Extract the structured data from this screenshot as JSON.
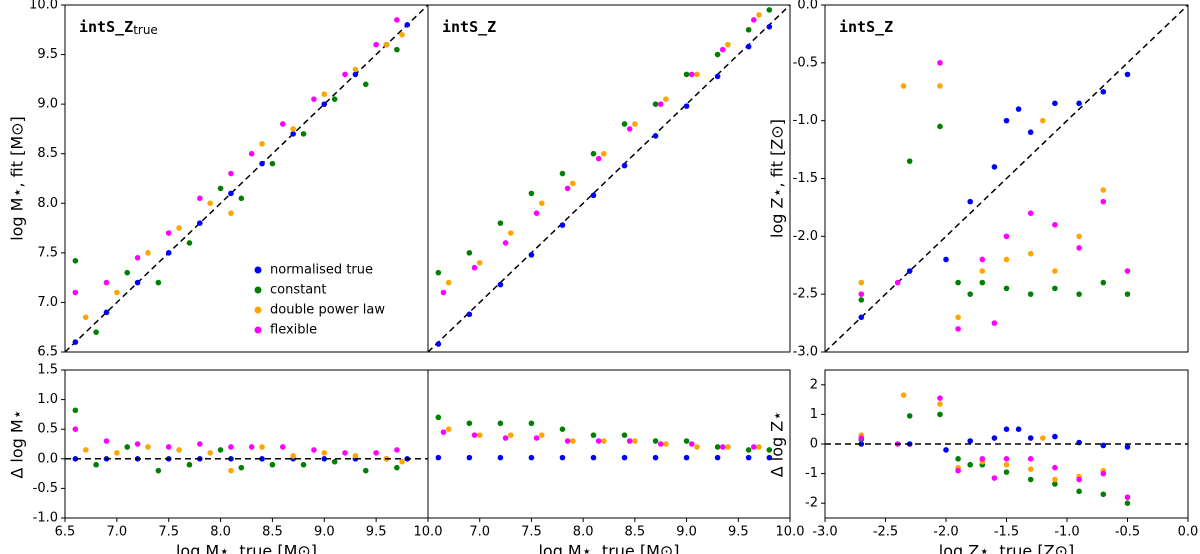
{
  "chart_data": [
    {
      "type": "scatter",
      "title": "intS_Z",
      "title_sub": "true",
      "ylabel": "log M⋆, fit [M⊙]",
      "xlim": [
        6.5,
        10
      ],
      "ylim": [
        6.5,
        10
      ],
      "yticks": [
        6.5,
        {
          "value": 7,
          "label": "7.0"
        },
        7.5,
        {
          "value": 8,
          "label": "8.0"
        },
        8.5,
        {
          "value": 9,
          "label": "9.0"
        },
        9.5,
        {
          "value": 10,
          "label": "10.0"
        }
      ],
      "diagonal": true,
      "legend": "lower right",
      "series": [
        {
          "name": "normalised true",
          "color": "#0000ff",
          "x": [
            6.6,
            6.9,
            7.2,
            7.5,
            7.8,
            8.1,
            8.4,
            8.7,
            9.0,
            9.3,
            9.6,
            9.8
          ],
          "y": [
            6.6,
            6.9,
            7.2,
            7.5,
            7.8,
            8.1,
            8.4,
            8.7,
            9.0,
            9.3,
            9.6,
            9.8
          ]
        },
        {
          "name": "constant",
          "color": "#008000",
          "x": [
            6.6,
            6.8,
            7.1,
            7.4,
            7.7,
            8.0,
            8.2,
            8.5,
            8.8,
            9.1,
            9.4,
            9.7
          ],
          "y": [
            7.42,
            6.7,
            7.3,
            7.2,
            7.6,
            8.15,
            8.05,
            8.4,
            8.7,
            9.05,
            9.2,
            9.55
          ]
        },
        {
          "name": "double power law",
          "color": "#ffa500",
          "x": [
            6.7,
            7.0,
            7.3,
            7.6,
            7.9,
            8.1,
            8.4,
            8.7,
            9.0,
            9.3,
            9.6,
            9.75
          ],
          "y": [
            6.85,
            7.1,
            7.5,
            7.75,
            8.0,
            7.9,
            8.6,
            8.75,
            9.1,
            9.35,
            9.6,
            9.7
          ]
        },
        {
          "name": "flexible",
          "color": "#ff00ff",
          "x": [
            6.6,
            6.9,
            7.2,
            7.5,
            7.8,
            8.1,
            8.3,
            8.6,
            8.9,
            9.2,
            9.5,
            9.7
          ],
          "y": [
            7.1,
            7.2,
            7.45,
            7.7,
            8.05,
            8.3,
            8.5,
            8.8,
            9.05,
            9.3,
            9.6,
            9.85
          ]
        }
      ]
    },
    {
      "type": "scatter",
      "title": "intS_Z",
      "xlim": [
        6.5,
        10
      ],
      "ylim": [
        6.5,
        10
      ],
      "diagonal": true,
      "series": [
        {
          "color": "#0000ff",
          "x": [
            6.6,
            6.9,
            7.2,
            7.5,
            7.8,
            8.1,
            8.4,
            8.7,
            9.0,
            9.3,
            9.6,
            9.8
          ],
          "y": [
            6.58,
            6.88,
            7.18,
            7.48,
            7.78,
            8.08,
            8.38,
            8.68,
            8.98,
            9.28,
            9.58,
            9.78
          ]
        },
        {
          "color": "#008000",
          "x": [
            6.6,
            6.9,
            7.2,
            7.5,
            7.8,
            8.1,
            8.4,
            8.7,
            9.0,
            9.3,
            9.6,
            9.8
          ],
          "y": [
            7.3,
            7.5,
            7.8,
            8.1,
            8.3,
            8.5,
            8.8,
            9.0,
            9.3,
            9.5,
            9.75,
            9.95
          ]
        },
        {
          "color": "#ffa500",
          "x": [
            6.7,
            7.0,
            7.3,
            7.6,
            7.9,
            8.2,
            8.5,
            8.8,
            9.1,
            9.4,
            9.7
          ],
          "y": [
            7.2,
            7.4,
            7.7,
            8.0,
            8.2,
            8.5,
            8.8,
            9.05,
            9.3,
            9.6,
            9.9
          ]
        },
        {
          "color": "#ff00ff",
          "x": [
            6.65,
            6.95,
            7.25,
            7.55,
            7.85,
            8.15,
            8.45,
            8.75,
            9.05,
            9.35,
            9.65
          ],
          "y": [
            7.1,
            7.35,
            7.6,
            7.9,
            8.15,
            8.45,
            8.75,
            9.0,
            9.3,
            9.55,
            9.85
          ]
        }
      ]
    },
    {
      "type": "scatter",
      "title": "intS_Z",
      "ylabel": "log Z⋆, fit [Z⊙]",
      "xlim": [
        -3,
        0
      ],
      "ylim": [
        -3,
        0
      ],
      "yticks": [
        {
          "value": -3,
          "label": "-3.0"
        },
        -2.5,
        {
          "value": -2,
          "label": "-2.0"
        },
        -1.5,
        {
          "value": -1,
          "label": "-1.0"
        },
        -0.5,
        {
          "value": 0,
          "label": "0.0"
        }
      ],
      "diagonal": true,
      "series": [
        {
          "color": "#0000ff",
          "x": [
            -2.7,
            -2.3,
            -2.0,
            -1.8,
            -1.6,
            -1.5,
            -1.4,
            -1.3,
            -1.1,
            -0.9,
            -0.7,
            -0.5
          ],
          "y": [
            -2.7,
            -2.3,
            -2.2,
            -1.7,
            -1.4,
            -1.0,
            -0.9,
            -1.1,
            -0.85,
            -0.85,
            -0.75,
            -0.6
          ]
        },
        {
          "color": "#008000",
          "x": [
            -2.7,
            -2.3,
            -2.05,
            -1.9,
            -1.7,
            -1.5,
            -1.3,
            -1.1,
            -0.9,
            -0.7,
            -0.5,
            -1.8
          ],
          "y": [
            -2.55,
            -1.35,
            -1.05,
            -2.4,
            -2.4,
            -2.45,
            -2.5,
            -2.45,
            -2.5,
            -2.4,
            -2.5,
            -2.5
          ]
        },
        {
          "color": "#ffa500",
          "x": [
            -2.7,
            -2.35,
            -2.05,
            -1.9,
            -1.7,
            -1.5,
            -1.3,
            -1.1,
            -0.9,
            -0.7,
            -0.5,
            -1.2
          ],
          "y": [
            -2.4,
            -0.7,
            -0.7,
            -2.7,
            -2.3,
            -2.2,
            -2.15,
            -2.3,
            -2.0,
            -1.6,
            -2.3,
            -1.0
          ]
        },
        {
          "color": "#ff00ff",
          "x": [
            -2.7,
            -2.4,
            -2.05,
            -1.9,
            -1.7,
            -1.5,
            -1.3,
            -1.1,
            -0.9,
            -0.7,
            -0.5,
            -1.6
          ],
          "y": [
            -2.5,
            -2.4,
            -0.5,
            -2.8,
            -2.2,
            -2.0,
            -1.8,
            -1.9,
            -2.1,
            -1.7,
            -2.3,
            -2.75
          ]
        }
      ]
    },
    {
      "type": "scatter",
      "xlabel": "log M⋆, true [M⊙]",
      "ylabel": "Δ log M⋆",
      "xlim": [
        6.5,
        10
      ],
      "ylim": [
        -1,
        1.5
      ],
      "xticks": [
        6.5,
        {
          "value": 7,
          "label": "7.0"
        },
        7.5,
        {
          "value": 8,
          "label": "8.0"
        },
        8.5,
        {
          "value": 9,
          "label": "9.0"
        },
        9.5,
        {
          "value": 10,
          "label": "10.0"
        }
      ],
      "yticks": [
        {
          "value": -1,
          "label": "-1.0"
        },
        -0.5,
        {
          "value": 0,
          "label": "0.0"
        },
        0.5,
        {
          "value": 1,
          "label": "1.0"
        },
        1.5
      ],
      "zero_line": true,
      "series": [
        {
          "color": "#0000ff",
          "x": [
            6.6,
            6.9,
            7.2,
            7.5,
            7.8,
            8.1,
            8.4,
            8.7,
            9.0,
            9.3,
            9.6,
            9.8
          ],
          "y": [
            0,
            0,
            0,
            0,
            0,
            0,
            0,
            0,
            0,
            0,
            0,
            0
          ]
        },
        {
          "color": "#008000",
          "x": [
            6.6,
            6.8,
            7.1,
            7.4,
            7.7,
            8.0,
            8.2,
            8.5,
            8.8,
            9.1,
            9.4,
            9.7
          ],
          "y": [
            0.82,
            -0.1,
            0.2,
            -0.2,
            -0.1,
            0.15,
            -0.15,
            -0.1,
            -0.1,
            -0.05,
            -0.2,
            -0.15
          ]
        },
        {
          "color": "#ffa500",
          "x": [
            6.7,
            7.0,
            7.3,
            7.6,
            7.9,
            8.1,
            8.4,
            8.7,
            9.0,
            9.3,
            9.6,
            9.75
          ],
          "y": [
            0.15,
            0.1,
            0.2,
            0.15,
            0.1,
            -0.2,
            0.2,
            0.05,
            0.1,
            0.05,
            0,
            -0.05
          ]
        },
        {
          "color": "#ff00ff",
          "x": [
            6.6,
            6.9,
            7.2,
            7.5,
            7.8,
            8.1,
            8.3,
            8.6,
            8.9,
            9.2,
            9.5,
            9.7
          ],
          "y": [
            0.5,
            0.3,
            0.25,
            0.2,
            0.25,
            0.2,
            0.2,
            0.2,
            0.15,
            0.1,
            0.1,
            0.15
          ]
        }
      ]
    },
    {
      "type": "scatter",
      "xlabel": "log M⋆, true [M⊙]",
      "xlim": [
        6.5,
        10
      ],
      "ylim": [
        -1,
        1.5
      ],
      "xticks": [
        {
          "value": 7,
          "label": "7.0"
        },
        7.5,
        {
          "value": 8,
          "label": "8.0"
        },
        8.5,
        {
          "value": 9,
          "label": "9.0"
        },
        9.5,
        {
          "value": 10,
          "label": "10.0"
        }
      ],
      "zero_line": false,
      "series": [
        {
          "color": "#0000ff",
          "x": [
            6.6,
            6.9,
            7.2,
            7.5,
            7.8,
            8.1,
            8.4,
            8.7,
            9.0,
            9.3,
            9.6,
            9.8
          ],
          "y": [
            0.02,
            0.02,
            0.02,
            0.02,
            0.02,
            0.02,
            0.02,
            0.02,
            0.02,
            0.02,
            0.02,
            0.02
          ]
        },
        {
          "color": "#008000",
          "x": [
            6.6,
            6.9,
            7.2,
            7.5,
            7.8,
            8.1,
            8.4,
            8.7,
            9.0,
            9.3,
            9.6,
            9.8
          ],
          "y": [
            0.7,
            0.6,
            0.6,
            0.6,
            0.5,
            0.4,
            0.4,
            0.3,
            0.3,
            0.2,
            0.15,
            0.15
          ]
        },
        {
          "color": "#ffa500",
          "x": [
            6.7,
            7.0,
            7.3,
            7.6,
            7.9,
            8.2,
            8.5,
            8.8,
            9.1,
            9.4,
            9.7
          ],
          "y": [
            0.5,
            0.4,
            0.4,
            0.4,
            0.3,
            0.3,
            0.3,
            0.25,
            0.2,
            0.2,
            0.2
          ]
        },
        {
          "color": "#ff00ff",
          "x": [
            6.65,
            6.95,
            7.25,
            7.55,
            7.85,
            8.15,
            8.45,
            8.75,
            9.05,
            9.35,
            9.65
          ],
          "y": [
            0.45,
            0.4,
            0.35,
            0.35,
            0.3,
            0.3,
            0.3,
            0.25,
            0.25,
            0.2,
            0.2
          ]
        }
      ]
    },
    {
      "type": "scatter",
      "xlabel": "log Z⋆, true [Z⊙]",
      "ylabel": "Δ log Z⋆",
      "xlim": [
        -3,
        0
      ],
      "ylim": [
        -2.5,
        2.5
      ],
      "xticks": [
        {
          "value": -3,
          "label": "-3.0"
        },
        -2.5,
        {
          "value": -2,
          "label": "-2.0"
        },
        -1.5,
        {
          "value": -1,
          "label": "-1.0"
        },
        -0.5,
        {
          "value": 0,
          "label": "0.0"
        }
      ],
      "yticks": [
        -2,
        -1,
        0,
        1,
        2
      ],
      "zero_line": true,
      "series": [
        {
          "color": "#0000ff",
          "x": [
            -2.7,
            -2.3,
            -2.0,
            -1.8,
            -1.6,
            -1.5,
            -1.4,
            -1.3,
            -1.1,
            -0.9,
            -0.7,
            -0.5
          ],
          "y": [
            0,
            0,
            -0.2,
            0.1,
            0.2,
            0.5,
            0.5,
            0.2,
            0.25,
            0.05,
            -0.05,
            -0.1
          ]
        },
        {
          "color": "#008000",
          "x": [
            -2.7,
            -2.3,
            -2.05,
            -1.9,
            -1.7,
            -1.5,
            -1.3,
            -1.1,
            -0.9,
            -0.7,
            -0.5,
            -1.8
          ],
          "y": [
            0.15,
            0.95,
            1.0,
            -0.5,
            -0.7,
            -0.95,
            -1.2,
            -1.35,
            -1.6,
            -1.7,
            -2.0,
            -0.7
          ]
        },
        {
          "color": "#ffa500",
          "x": [
            -2.7,
            -2.35,
            -2.05,
            -1.9,
            -1.7,
            -1.5,
            -1.3,
            -1.1,
            -0.9,
            -0.7,
            -0.5,
            -1.2
          ],
          "y": [
            0.3,
            1.65,
            1.35,
            -0.8,
            -0.6,
            -0.7,
            -0.85,
            -1.2,
            -1.1,
            -0.9,
            -1.8,
            0.2
          ]
        },
        {
          "color": "#ff00ff",
          "x": [
            -2.7,
            -2.4,
            -2.05,
            -1.9,
            -1.7,
            -1.5,
            -1.3,
            -1.1,
            -0.9,
            -0.7,
            -0.5,
            -1.6
          ],
          "y": [
            0.2,
            0,
            1.55,
            -0.9,
            -0.5,
            -0.5,
            -0.5,
            -0.8,
            -1.2,
            -1.0,
            -1.8,
            -1.15
          ]
        }
      ]
    }
  ]
}
